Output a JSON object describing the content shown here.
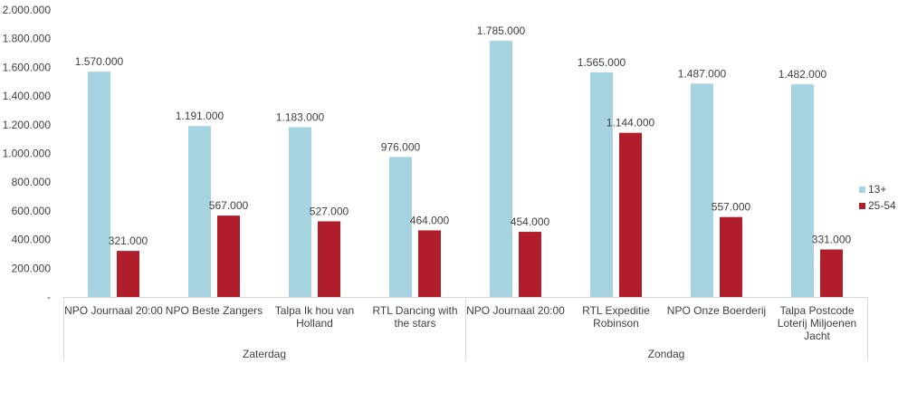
{
  "chart_data": {
    "type": "bar",
    "title": "",
    "xlabel": "",
    "ylabel": "",
    "ylim": [
      0,
      2000000
    ],
    "yticks": [
      0,
      200000,
      400000,
      600000,
      800000,
      1000000,
      1200000,
      1400000,
      1600000,
      1800000,
      2000000
    ],
    "ytick_labels": [
      "-",
      "200.000",
      "400.000",
      "600.000",
      "800.000",
      "1.000.000",
      "1.200.000",
      "1.400.000",
      "1.600.000",
      "1.800.000",
      "2.000.000"
    ],
    "categories": [
      [
        "NPO Journaal 20:00"
      ],
      [
        "NPO Beste Zangers"
      ],
      [
        "Talpa Ik hou van",
        "Holland"
      ],
      [
        "RTL Dancing with",
        "the stars"
      ],
      [
        "NPO Journaal 20:00"
      ],
      [
        "RTL Expeditie",
        "Robinson"
      ],
      [
        "NPO Onze Boerderij"
      ],
      [
        "Talpa Postcode",
        "Loterij Miljoenen",
        "Jacht"
      ]
    ],
    "groups": [
      {
        "name": "Zaterdag",
        "start": 0,
        "end": 3
      },
      {
        "name": "Zondag",
        "start": 4,
        "end": 7
      }
    ],
    "series": [
      {
        "name": "13+",
        "color": "#a6d3e1",
        "values": [
          1570000,
          1191000,
          1183000,
          976000,
          1785000,
          1565000,
          1487000,
          1482000
        ],
        "labels": [
          "1.570.000",
          "1.191.000",
          "1.183.000",
          "976.000",
          "1.785.000",
          "1.565.000",
          "1.487.000",
          "1.482.000"
        ]
      },
      {
        "name": "25-54",
        "color": "#b01e2b",
        "values": [
          321000,
          567000,
          527000,
          464000,
          454000,
          1144000,
          557000,
          331000
        ],
        "labels": [
          "321.000",
          "567.000",
          "527.000",
          "464.000",
          "454.000",
          "1.144.000",
          "557.000",
          "331.000"
        ]
      }
    ],
    "legend": "right",
    "grid": false
  }
}
